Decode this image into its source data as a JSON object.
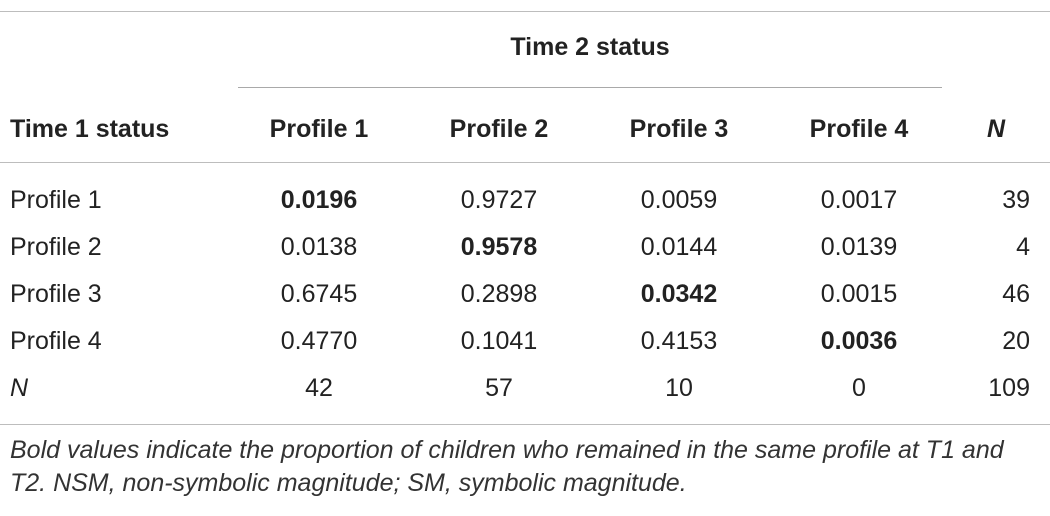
{
  "table": {
    "group_header": "Time 2 status",
    "row_header_label": "Time 1 status",
    "columns": [
      "Profile 1",
      "Profile 2",
      "Profile 3",
      "Profile 4",
      "N"
    ],
    "rows": [
      {
        "label": "Profile 1",
        "values": [
          "0.0196",
          "0.9727",
          "0.0059",
          "0.0017",
          "39"
        ]
      },
      {
        "label": "Profile 2",
        "values": [
          "0.0138",
          "0.9578",
          "0.0144",
          "0.0139",
          "4"
        ]
      },
      {
        "label": "Profile 3",
        "values": [
          "0.6745",
          "0.2898",
          "0.0342",
          "0.0015",
          "46"
        ]
      },
      {
        "label": "Profile 4",
        "values": [
          "0.4770",
          "0.1041",
          "0.4153",
          "0.0036",
          "20"
        ]
      },
      {
        "label": "N",
        "values": [
          "42",
          "57",
          "10",
          "0",
          "109"
        ]
      }
    ],
    "note": "Bold values indicate the proportion of children who remained in the same profile at T1 and T2. NSM, non-symbolic magnitude; SM, symbolic magnitude."
  }
}
